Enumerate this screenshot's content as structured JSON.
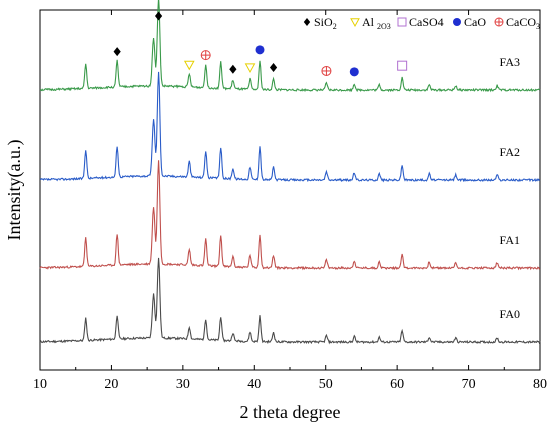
{
  "chart_data": {
    "type": "line",
    "title": "",
    "xlabel": "2 theta degree",
    "ylabel": "Intensity(a.u.)",
    "xlim": [
      10,
      80
    ],
    "xticks": [
      "10",
      "20",
      "30",
      "40",
      "50",
      "60",
      "70",
      "80"
    ],
    "grid": false,
    "legend_position": "top-right",
    "peaks": [
      {
        "x": 16.4,
        "h": 0.28
      },
      {
        "x": 20.8,
        "h": 0.3
      },
      {
        "x": 25.9,
        "h": 0.55
      },
      {
        "x": 26.6,
        "h": 1.0
      },
      {
        "x": 30.9,
        "h": 0.15
      },
      {
        "x": 33.2,
        "h": 0.26
      },
      {
        "x": 35.3,
        "h": 0.3
      },
      {
        "x": 37.0,
        "h": 0.1
      },
      {
        "x": 39.4,
        "h": 0.12
      },
      {
        "x": 40.8,
        "h": 0.32
      },
      {
        "x": 42.7,
        "h": 0.12
      },
      {
        "x": 50.1,
        "h": 0.08
      },
      {
        "x": 54.0,
        "h": 0.07
      },
      {
        "x": 57.5,
        "h": 0.06
      },
      {
        "x": 60.7,
        "h": 0.14
      },
      {
        "x": 64.5,
        "h": 0.06
      },
      {
        "x": 68.2,
        "h": 0.05
      },
      {
        "x": 74.0,
        "h": 0.05
      }
    ],
    "series": [
      {
        "name": "FA0",
        "color": "#4a4a4a",
        "offset": 0,
        "amplitude": 1.0,
        "seed": 11
      },
      {
        "name": "FA1",
        "color": "#c0504d",
        "offset": 1,
        "amplitude": 1.3,
        "seed": 23
      },
      {
        "name": "FA2",
        "color": "#2a5cc8",
        "offset": 2,
        "amplitude": 1.3,
        "seed": 37
      },
      {
        "name": "FA3",
        "color": "#3a9a4a",
        "offset": 3,
        "amplitude": 1.1,
        "seed": 51
      }
    ],
    "legend": [
      {
        "symbol": "diamond",
        "label": "SiO",
        "sub": "2",
        "color": "#000000"
      },
      {
        "symbol": "triangle-down",
        "label": "Al ",
        "sub": "2O3",
        "color": "#e6d000"
      },
      {
        "symbol": "square",
        "label": "CaSO4",
        "sub": "",
        "color": "#b070d0"
      },
      {
        "symbol": "circle",
        "label": "CaO",
        "sub": "",
        "color": "#1f2fd0"
      },
      {
        "symbol": "circle-plus",
        "label": "CaCO",
        "sub": "3",
        "color": "#e04040"
      }
    ],
    "phase_markers": [
      {
        "x": 20.8,
        "phase": "diamond"
      },
      {
        "x": 26.6,
        "phase": "diamond"
      },
      {
        "x": 30.9,
        "phase": "triangle-down"
      },
      {
        "x": 33.2,
        "phase": "circle-plus"
      },
      {
        "x": 37.0,
        "phase": "diamond"
      },
      {
        "x": 39.4,
        "phase": "triangle-down"
      },
      {
        "x": 40.8,
        "phase": "circle"
      },
      {
        "x": 42.7,
        "phase": "diamond"
      },
      {
        "x": 50.1,
        "phase": "circle-plus"
      },
      {
        "x": 54.0,
        "phase": "circle"
      },
      {
        "x": 60.7,
        "phase": "square"
      }
    ]
  }
}
